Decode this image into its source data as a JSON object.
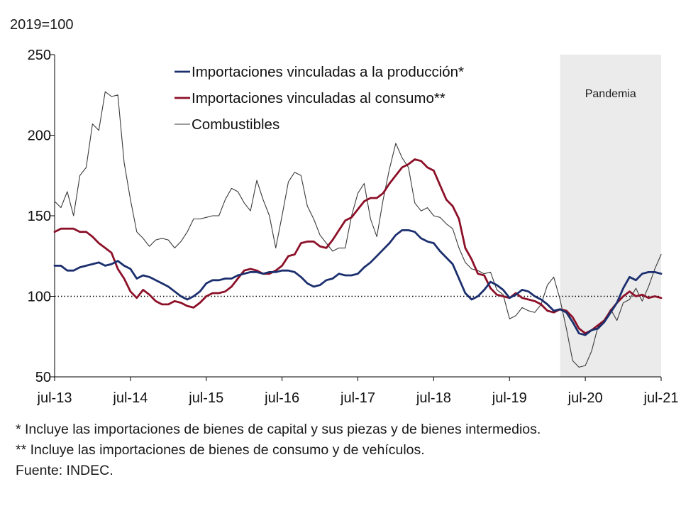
{
  "unit_label": "2019=100",
  "footnotes": [
    "* Incluye las importaciones de bienes de capital y sus piezas y de bienes intermedios.",
    "** Incluye las importaciones de bienes de consumo y de vehículos.",
    "Fuente: INDEC."
  ],
  "chart_data": {
    "type": "line",
    "title": "",
    "xlabel": "",
    "ylabel": "2019=100",
    "ylim": [
      50,
      250
    ],
    "yticks": [
      50,
      100,
      150,
      200,
      250
    ],
    "xticks": [
      "jul-13",
      "jul-14",
      "jul-15",
      "jul-16",
      "jul-17",
      "jul-18",
      "jul-19",
      "jul-20",
      "jul-21"
    ],
    "x_start": "2013-07",
    "x_end": "2021-07",
    "reference_line": {
      "value": 100,
      "style": "dotted"
    },
    "shaded_region": {
      "label": "Pandemia",
      "from": "2020-03",
      "to": "2021-07",
      "color": "#ebebeb"
    },
    "legend_position": "top-center",
    "series": [
      {
        "name": "Importaciones vinculadas a la producción*",
        "color": "#1b2f6e",
        "width": 2.8,
        "points": [
          [
            "2013-07",
            119
          ],
          [
            "2013-08",
            119
          ],
          [
            "2013-09",
            116
          ],
          [
            "2013-10",
            116
          ],
          [
            "2013-11",
            118
          ],
          [
            "2013-12",
            119
          ],
          [
            "2014-01",
            120
          ],
          [
            "2014-02",
            121
          ],
          [
            "2014-03",
            119
          ],
          [
            "2014-04",
            120
          ],
          [
            "2014-05",
            122
          ],
          [
            "2014-06",
            119
          ],
          [
            "2014-07",
            117
          ],
          [
            "2014-08",
            111
          ],
          [
            "2014-09",
            113
          ],
          [
            "2014-10",
            112
          ],
          [
            "2014-11",
            110
          ],
          [
            "2014-12",
            108
          ],
          [
            "2015-01",
            106
          ],
          [
            "2015-02",
            103
          ],
          [
            "2015-03",
            100
          ],
          [
            "2015-04",
            98
          ],
          [
            "2015-05",
            100
          ],
          [
            "2015-06",
            103
          ],
          [
            "2015-07",
            108
          ],
          [
            "2015-08",
            110
          ],
          [
            "2015-09",
            110
          ],
          [
            "2015-10",
            111
          ],
          [
            "2015-11",
            111
          ],
          [
            "2015-12",
            113
          ],
          [
            "2016-01",
            114
          ],
          [
            "2016-02",
            115
          ],
          [
            "2016-03",
            115
          ],
          [
            "2016-04",
            114
          ],
          [
            "2016-05",
            115
          ],
          [
            "2016-06",
            115
          ],
          [
            "2016-07",
            116
          ],
          [
            "2016-08",
            116
          ],
          [
            "2016-09",
            115
          ],
          [
            "2016-10",
            112
          ],
          [
            "2016-11",
            108
          ],
          [
            "2016-12",
            106
          ],
          [
            "2017-01",
            107
          ],
          [
            "2017-02",
            110
          ],
          [
            "2017-03",
            111
          ],
          [
            "2017-04",
            114
          ],
          [
            "2017-05",
            113
          ],
          [
            "2017-06",
            113
          ],
          [
            "2017-07",
            114
          ],
          [
            "2017-08",
            118
          ],
          [
            "2017-09",
            121
          ],
          [
            "2017-10",
            125
          ],
          [
            "2017-11",
            129
          ],
          [
            "2017-12",
            133
          ],
          [
            "2018-01",
            138
          ],
          [
            "2018-02",
            141
          ],
          [
            "2018-03",
            141
          ],
          [
            "2018-04",
            140
          ],
          [
            "2018-05",
            136
          ],
          [
            "2018-06",
            134
          ],
          [
            "2018-07",
            133
          ],
          [
            "2018-08",
            128
          ],
          [
            "2018-09",
            124
          ],
          [
            "2018-10",
            120
          ],
          [
            "2018-11",
            111
          ],
          [
            "2018-12",
            102
          ],
          [
            "2019-01",
            98
          ],
          [
            "2019-02",
            100
          ],
          [
            "2019-03",
            104
          ],
          [
            "2019-04",
            109
          ],
          [
            "2019-05",
            107
          ],
          [
            "2019-06",
            104
          ],
          [
            "2019-07",
            99
          ],
          [
            "2019-08",
            101
          ],
          [
            "2019-09",
            104
          ],
          [
            "2019-10",
            103
          ],
          [
            "2019-11",
            100
          ],
          [
            "2019-12",
            98
          ],
          [
            "2020-01",
            95
          ],
          [
            "2020-02",
            91
          ],
          [
            "2020-03",
            92
          ],
          [
            "2020-04",
            90
          ],
          [
            "2020-05",
            84
          ],
          [
            "2020-06",
            77
          ],
          [
            "2020-07",
            76
          ],
          [
            "2020-08",
            79
          ],
          [
            "2020-09",
            80
          ],
          [
            "2020-10",
            84
          ],
          [
            "2020-11",
            90
          ],
          [
            "2020-12",
            96
          ],
          [
            "2021-01",
            105
          ],
          [
            "2021-02",
            112
          ],
          [
            "2021-03",
            110
          ],
          [
            "2021-04",
            114
          ],
          [
            "2021-05",
            115
          ],
          [
            "2021-06",
            115
          ],
          [
            "2021-07",
            114
          ]
        ]
      },
      {
        "name": "Importaciones vinculadas al consumo**",
        "color": "#8c1028",
        "width": 2.8,
        "points": [
          [
            "2013-07",
            140
          ],
          [
            "2013-08",
            142
          ],
          [
            "2013-09",
            142
          ],
          [
            "2013-10",
            142
          ],
          [
            "2013-11",
            140
          ],
          [
            "2013-12",
            140
          ],
          [
            "2014-01",
            137
          ],
          [
            "2014-02",
            133
          ],
          [
            "2014-03",
            130
          ],
          [
            "2014-04",
            127
          ],
          [
            "2014-05",
            117
          ],
          [
            "2014-06",
            111
          ],
          [
            "2014-07",
            103
          ],
          [
            "2014-08",
            99
          ],
          [
            "2014-09",
            104
          ],
          [
            "2014-10",
            101
          ],
          [
            "2014-11",
            97
          ],
          [
            "2014-12",
            95
          ],
          [
            "2015-01",
            95
          ],
          [
            "2015-02",
            97
          ],
          [
            "2015-03",
            96
          ],
          [
            "2015-04",
            94
          ],
          [
            "2015-05",
            93
          ],
          [
            "2015-06",
            96
          ],
          [
            "2015-07",
            100
          ],
          [
            "2015-08",
            102
          ],
          [
            "2015-09",
            102
          ],
          [
            "2015-10",
            103
          ],
          [
            "2015-11",
            106
          ],
          [
            "2015-12",
            111
          ],
          [
            "2016-01",
            116
          ],
          [
            "2016-02",
            117
          ],
          [
            "2016-03",
            116
          ],
          [
            "2016-04",
            114
          ],
          [
            "2016-05",
            114
          ],
          [
            "2016-06",
            116
          ],
          [
            "2016-07",
            119
          ],
          [
            "2016-08",
            125
          ],
          [
            "2016-09",
            126
          ],
          [
            "2016-10",
            133
          ],
          [
            "2016-11",
            134
          ],
          [
            "2016-12",
            134
          ],
          [
            "2017-01",
            131
          ],
          [
            "2017-02",
            130
          ],
          [
            "2017-03",
            135
          ],
          [
            "2017-04",
            141
          ],
          [
            "2017-05",
            147
          ],
          [
            "2017-06",
            149
          ],
          [
            "2017-07",
            154
          ],
          [
            "2017-08",
            159
          ],
          [
            "2017-09",
            161
          ],
          [
            "2017-10",
            161
          ],
          [
            "2017-11",
            164
          ],
          [
            "2017-12",
            170
          ],
          [
            "2018-01",
            175
          ],
          [
            "2018-02",
            180
          ],
          [
            "2018-03",
            182
          ],
          [
            "2018-04",
            185
          ],
          [
            "2018-05",
            184
          ],
          [
            "2018-06",
            180
          ],
          [
            "2018-07",
            178
          ],
          [
            "2018-08",
            169
          ],
          [
            "2018-09",
            160
          ],
          [
            "2018-10",
            156
          ],
          [
            "2018-11",
            148
          ],
          [
            "2018-12",
            130
          ],
          [
            "2019-01",
            123
          ],
          [
            "2019-02",
            114
          ],
          [
            "2019-03",
            113
          ],
          [
            "2019-04",
            105
          ],
          [
            "2019-05",
            101
          ],
          [
            "2019-06",
            100
          ],
          [
            "2019-07",
            99
          ],
          [
            "2019-08",
            102
          ],
          [
            "2019-09",
            99
          ],
          [
            "2019-10",
            98
          ],
          [
            "2019-11",
            97
          ],
          [
            "2019-12",
            95
          ],
          [
            "2020-01",
            91
          ],
          [
            "2020-02",
            90
          ],
          [
            "2020-03",
            92
          ],
          [
            "2020-04",
            91
          ],
          [
            "2020-05",
            87
          ],
          [
            "2020-06",
            80
          ],
          [
            "2020-07",
            77
          ],
          [
            "2020-08",
            79
          ],
          [
            "2020-09",
            82
          ],
          [
            "2020-10",
            85
          ],
          [
            "2020-11",
            91
          ],
          [
            "2020-12",
            96
          ],
          [
            "2021-01",
            100
          ],
          [
            "2021-02",
            103
          ],
          [
            "2021-03",
            100
          ],
          [
            "2021-04",
            101
          ],
          [
            "2021-05",
            99
          ],
          [
            "2021-06",
            100
          ],
          [
            "2021-07",
            99
          ]
        ]
      },
      {
        "name": "Combustibles",
        "color": "#3a3a3a",
        "width": 1.1,
        "points": [
          [
            "2013-07",
            159
          ],
          [
            "2013-08",
            155
          ],
          [
            "2013-09",
            165
          ],
          [
            "2013-10",
            150
          ],
          [
            "2013-11",
            175
          ],
          [
            "2013-12",
            180
          ],
          [
            "2014-01",
            207
          ],
          [
            "2014-02",
            203
          ],
          [
            "2014-03",
            227
          ],
          [
            "2014-04",
            224
          ],
          [
            "2014-05",
            225
          ],
          [
            "2014-06",
            183
          ],
          [
            "2014-07",
            160
          ],
          [
            "2014-08",
            140
          ],
          [
            "2014-09",
            136
          ],
          [
            "2014-10",
            131
          ],
          [
            "2014-11",
            135
          ],
          [
            "2014-12",
            136
          ],
          [
            "2015-01",
            135
          ],
          [
            "2015-02",
            130
          ],
          [
            "2015-03",
            134
          ],
          [
            "2015-04",
            140
          ],
          [
            "2015-05",
            148
          ],
          [
            "2015-06",
            148
          ],
          [
            "2015-07",
            149
          ],
          [
            "2015-08",
            150
          ],
          [
            "2015-09",
            150
          ],
          [
            "2015-10",
            160
          ],
          [
            "2015-11",
            167
          ],
          [
            "2015-12",
            165
          ],
          [
            "2016-01",
            158
          ],
          [
            "2016-02",
            153
          ],
          [
            "2016-03",
            172
          ],
          [
            "2016-04",
            160
          ],
          [
            "2016-05",
            150
          ],
          [
            "2016-06",
            130
          ],
          [
            "2016-07",
            150
          ],
          [
            "2016-08",
            171
          ],
          [
            "2016-09",
            177
          ],
          [
            "2016-10",
            175
          ],
          [
            "2016-11",
            156
          ],
          [
            "2016-12",
            148
          ],
          [
            "2017-01",
            138
          ],
          [
            "2017-02",
            133
          ],
          [
            "2017-03",
            128
          ],
          [
            "2017-04",
            130
          ],
          [
            "2017-05",
            130
          ],
          [
            "2017-06",
            150
          ],
          [
            "2017-07",
            164
          ],
          [
            "2017-08",
            170
          ],
          [
            "2017-09",
            148
          ],
          [
            "2017-10",
            137
          ],
          [
            "2017-11",
            160
          ],
          [
            "2017-12",
            179
          ],
          [
            "2018-01",
            195
          ],
          [
            "2018-02",
            186
          ],
          [
            "2018-03",
            180
          ],
          [
            "2018-04",
            158
          ],
          [
            "2018-05",
            153
          ],
          [
            "2018-06",
            155
          ],
          [
            "2018-07",
            150
          ],
          [
            "2018-08",
            149
          ],
          [
            "2018-09",
            145
          ],
          [
            "2018-10",
            142
          ],
          [
            "2018-11",
            130
          ],
          [
            "2018-12",
            121
          ],
          [
            "2019-01",
            117
          ],
          [
            "2019-02",
            116
          ],
          [
            "2019-03",
            114
          ],
          [
            "2019-04",
            115
          ],
          [
            "2019-05",
            104
          ],
          [
            "2019-06",
            101
          ],
          [
            "2019-07",
            86
          ],
          [
            "2019-08",
            88
          ],
          [
            "2019-09",
            93
          ],
          [
            "2019-10",
            91
          ],
          [
            "2019-11",
            90
          ],
          [
            "2019-12",
            95
          ],
          [
            "2020-01",
            107
          ],
          [
            "2020-02",
            112
          ],
          [
            "2020-03",
            98
          ],
          [
            "2020-04",
            80
          ],
          [
            "2020-05",
            60
          ],
          [
            "2020-06",
            56
          ],
          [
            "2020-07",
            57
          ],
          [
            "2020-08",
            66
          ],
          [
            "2020-09",
            81
          ],
          [
            "2020-10",
            85
          ],
          [
            "2020-11",
            92
          ],
          [
            "2020-12",
            85
          ],
          [
            "2021-01",
            96
          ],
          [
            "2021-02",
            98
          ],
          [
            "2021-03",
            105
          ],
          [
            "2021-04",
            97
          ],
          [
            "2021-05",
            106
          ],
          [
            "2021-06",
            117
          ],
          [
            "2021-07",
            126
          ]
        ]
      }
    ]
  }
}
